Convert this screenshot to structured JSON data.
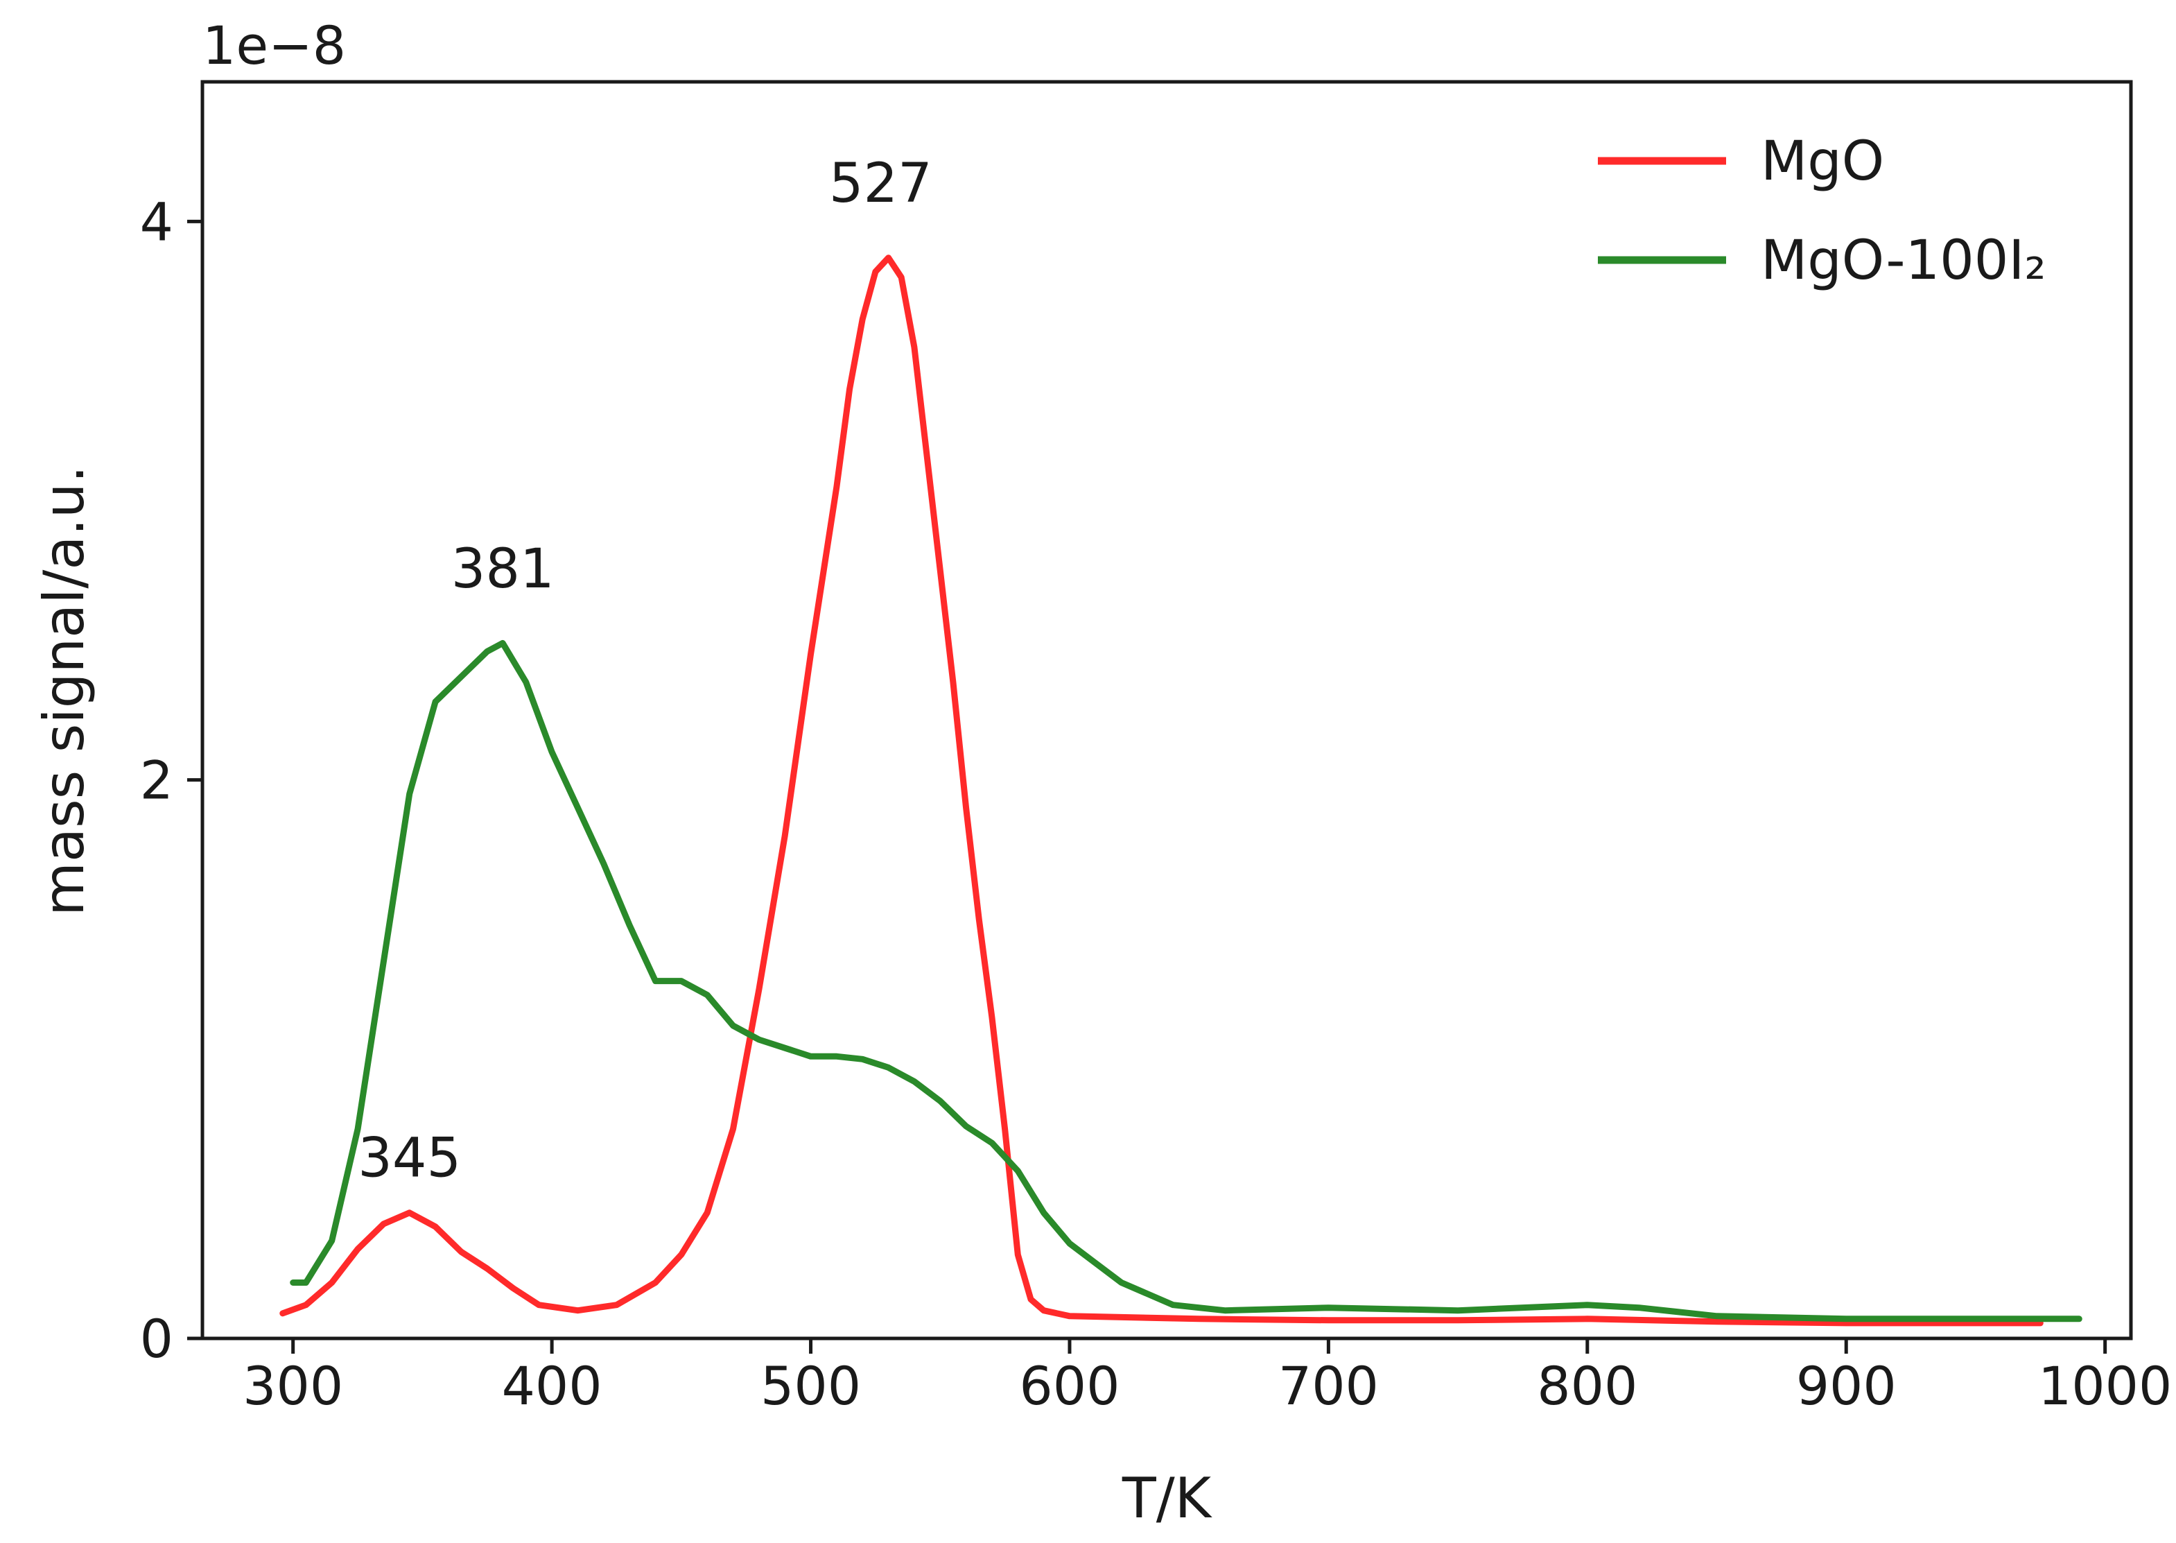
{
  "chart_data": {
    "type": "line",
    "title": "",
    "xlabel": "T/K",
    "ylabel": "mass signal/a.u.",
    "y_offset_text": "1e−8",
    "xlim": [
      265,
      1010
    ],
    "ylim": [
      0,
      4.5
    ],
    "xticks": [
      300,
      400,
      500,
      600,
      700,
      800,
      900,
      1000
    ],
    "xtick_labels": [
      "300",
      "400",
      "500",
      "600",
      "700",
      "800",
      "900",
      "1000"
    ],
    "yticks": [
      0,
      2,
      4
    ],
    "ytick_labels": [
      "0",
      "2",
      "4"
    ],
    "grid": false,
    "legend_position": "top-right",
    "series": [
      {
        "name": "MgO",
        "color": "#ff2a2a",
        "x": [
          296,
          305,
          315,
          325,
          335,
          345,
          355,
          365,
          375,
          385,
          395,
          410,
          425,
          440,
          450,
          460,
          470,
          480,
          490,
          500,
          510,
          515,
          520,
          525,
          530,
          535,
          540,
          545,
          550,
          555,
          560,
          565,
          570,
          575,
          580,
          585,
          590,
          600,
          650,
          700,
          750,
          800,
          850,
          900,
          950,
          975
        ],
        "y": [
          0.09,
          0.12,
          0.2,
          0.32,
          0.41,
          0.45,
          0.4,
          0.31,
          0.25,
          0.18,
          0.12,
          0.1,
          0.12,
          0.2,
          0.3,
          0.45,
          0.75,
          1.25,
          1.8,
          2.45,
          3.05,
          3.4,
          3.65,
          3.82,
          3.87,
          3.8,
          3.55,
          3.15,
          2.75,
          2.35,
          1.9,
          1.5,
          1.15,
          0.75,
          0.3,
          0.14,
          0.1,
          0.08,
          0.07,
          0.065,
          0.065,
          0.07,
          0.06,
          0.055,
          0.055,
          0.055
        ]
      },
      {
        "name": "MgO-100I₂",
        "color": "#2a8a2a",
        "x": [
          300,
          305,
          315,
          325,
          335,
          345,
          355,
          365,
          375,
          381,
          390,
          400,
          410,
          420,
          430,
          440,
          450,
          460,
          470,
          480,
          490,
          500,
          510,
          520,
          530,
          540,
          550,
          560,
          570,
          580,
          590,
          600,
          610,
          620,
          640,
          660,
          700,
          750,
          800,
          820,
          850,
          900,
          950,
          990
        ],
        "y": [
          0.2,
          0.2,
          0.35,
          0.75,
          1.35,
          1.95,
          2.28,
          2.37,
          2.46,
          2.49,
          2.35,
          2.1,
          1.9,
          1.7,
          1.48,
          1.28,
          1.28,
          1.23,
          1.12,
          1.07,
          1.04,
          1.01,
          1.01,
          1.0,
          0.97,
          0.92,
          0.85,
          0.76,
          0.7,
          0.6,
          0.45,
          0.34,
          0.27,
          0.2,
          0.12,
          0.1,
          0.11,
          0.1,
          0.12,
          0.11,
          0.08,
          0.07,
          0.07,
          0.07
        ]
      }
    ],
    "annotations": [
      {
        "text": "345",
        "x": 345,
        "y": 0.58
      },
      {
        "text": "381",
        "x": 381,
        "y": 2.69
      },
      {
        "text": "527",
        "x": 527,
        "y": 4.07
      }
    ]
  }
}
